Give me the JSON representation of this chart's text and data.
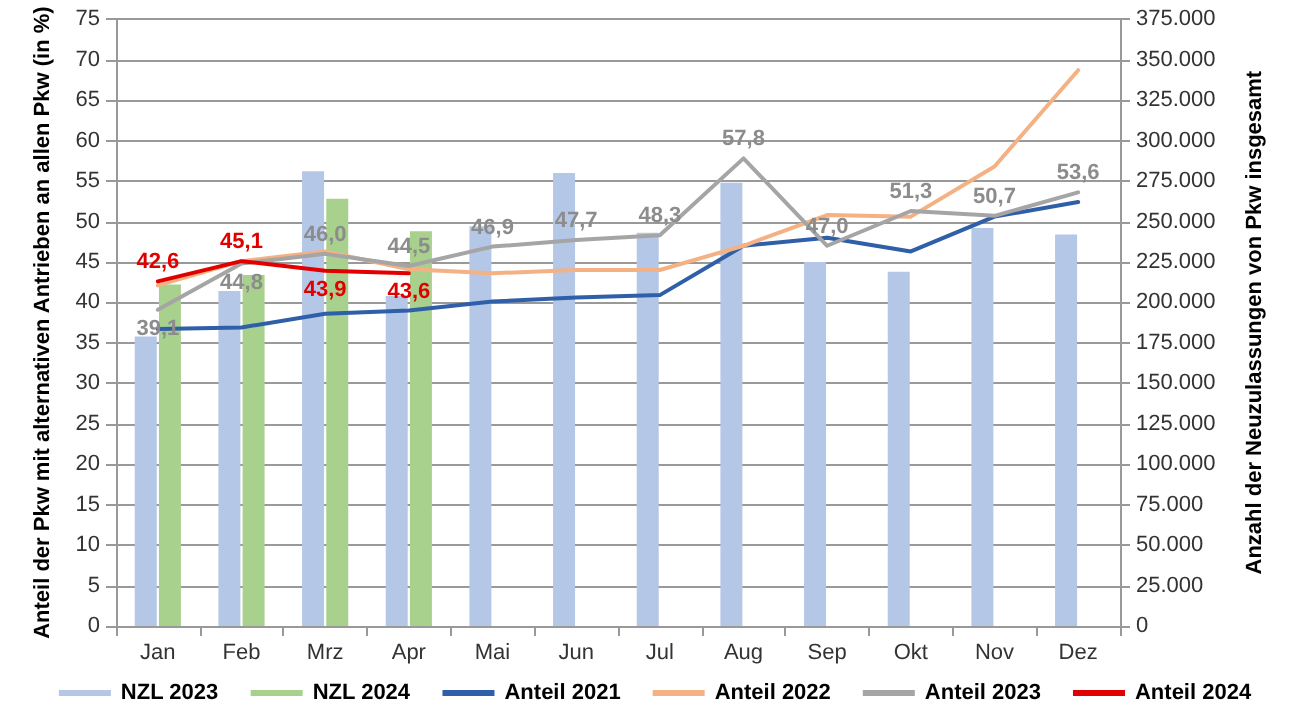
{
  "chart_data": {
    "type": "bar",
    "categories": [
      "Jan",
      "Feb",
      "Mrz",
      "Apr",
      "Mai",
      "Jun",
      "Jul",
      "Aug",
      "Sep",
      "Okt",
      "Nov",
      "Dez"
    ],
    "ylabel": "Anteil der Pkw mit alternativen Antrieben an allen Pkw (in %)",
    "y2label": "Anzahl der Neuzulassungen von Pkw insgesamt",
    "ylim": [
      0,
      75
    ],
    "yticks": [
      0,
      5,
      10,
      15,
      20,
      25,
      30,
      35,
      40,
      45,
      50,
      55,
      60,
      65,
      70,
      75
    ],
    "y2lim": [
      0,
      375000
    ],
    "y2ticks": [
      {
        "value": 0,
        "label": "0"
      },
      {
        "value": 25000,
        "label": "25.000"
      },
      {
        "value": 50000,
        "label": "50.000"
      },
      {
        "value": 75000,
        "label": "75.000"
      },
      {
        "value": 100000,
        "label": "100.000"
      },
      {
        "value": 125000,
        "label": "125.000"
      },
      {
        "value": 150000,
        "label": "150.000"
      },
      {
        "value": 175000,
        "label": "175.000"
      },
      {
        "value": 200000,
        "label": "200.000"
      },
      {
        "value": 225000,
        "label": "225.000"
      },
      {
        "value": 250000,
        "label": "250.000"
      },
      {
        "value": 275000,
        "label": "275.000"
      },
      {
        "value": 300000,
        "label": "300.000"
      },
      {
        "value": 325000,
        "label": "325.000"
      },
      {
        "value": 350000,
        "label": "350.000"
      },
      {
        "value": 375000,
        "label": "375.000"
      }
    ],
    "grid": "y",
    "legend": "bottom",
    "marker": "none",
    "line_style": "solid",
    "series": [
      {
        "name": "NZL 2023",
        "axis": "y2",
        "color": "#b4c7e7",
        "values": [
          179000,
          207000,
          281000,
          204000,
          247000,
          280000,
          243000,
          274000,
          225000,
          219000,
          246000,
          242000
        ]
      },
      {
        "name": "NZL 2024",
        "axis": "y2",
        "color": "#a9d18e",
        "values": [
          211000,
          217000,
          264000,
          244000,
          null,
          null,
          null,
          null,
          null,
          null,
          null,
          null
        ]
      },
      {
        "name": "Anteil 2021",
        "type": "line",
        "color": "#2f5fa8",
        "values": [
          36.7,
          36.9,
          38.6,
          39.0,
          40.1,
          40.6,
          40.9,
          47.0,
          48.0,
          46.3,
          50.6,
          52.4
        ]
      },
      {
        "name": "Anteil 2022",
        "type": "line",
        "color": "#f4b183",
        "values": [
          42.1,
          45.1,
          46.3,
          44.1,
          43.6,
          44.0,
          44.0,
          47.0,
          50.8,
          50.6,
          56.8,
          68.7
        ]
      },
      {
        "name": "Anteil 2023",
        "type": "line",
        "color": "#a5a5a5",
        "values": [
          39.1,
          44.8,
          46.0,
          44.5,
          46.9,
          47.7,
          48.3,
          57.8,
          47.0,
          51.3,
          50.7,
          53.6
        ],
        "value_labels": [
          "39,1",
          "44,8",
          "46,0",
          "44,5",
          "46,9",
          "47,7",
          "48,3",
          "57,8",
          "47,0",
          "51,3",
          "50,7",
          "53,6"
        ]
      },
      {
        "name": "Anteil 2024",
        "type": "line",
        "color": "#e00000",
        "values": [
          42.6,
          45.1,
          43.9,
          43.6,
          null,
          null,
          null,
          null,
          null,
          null,
          null,
          null
        ],
        "value_labels": [
          "42,6",
          "45,1",
          "43,9",
          "43,6",
          null,
          null,
          null,
          null,
          null,
          null,
          null,
          null
        ]
      }
    ]
  }
}
